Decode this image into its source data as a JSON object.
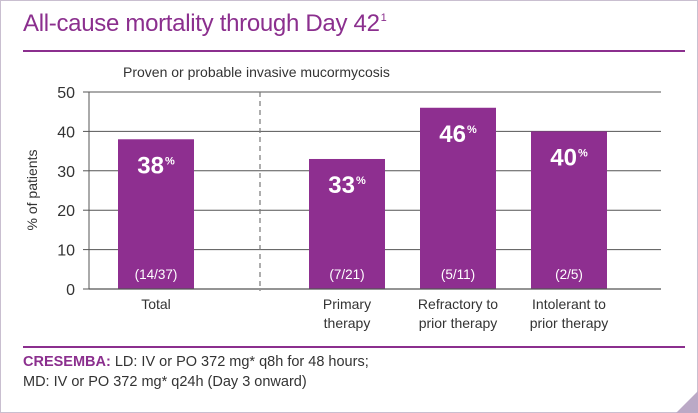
{
  "header": {
    "title": "All-cause mortality through Day 42",
    "title_superscript": "1"
  },
  "chart_data": {
    "type": "bar",
    "subtitle": "Proven or probable invasive mucormycosis",
    "ylabel": "% of patients",
    "ylim": [
      0,
      50
    ],
    "yticks": [
      0,
      10,
      20,
      30,
      40,
      50
    ],
    "grid": true,
    "bar_color": "#8e2f90",
    "categories": [
      [
        "Total"
      ],
      [
        "Primary",
        "therapy"
      ],
      [
        "Refractory to",
        "prior therapy"
      ],
      [
        "Intolerant to",
        "prior therapy"
      ]
    ],
    "values": [
      38,
      33,
      46,
      40
    ],
    "value_labels": [
      "38",
      "33",
      "46",
      "40"
    ],
    "value_unit": "%",
    "count_labels": [
      "(14/37)",
      "(7/21)",
      "(5/11)",
      "(2/5)"
    ]
  },
  "footer": {
    "brand": "CRESEMBA:",
    "line1": " LD: IV or PO 372 mg* q8h for 48 hours;",
    "line2": "MD: IV or PO 372 mg* q24h (Day 3 onward)"
  },
  "colors": {
    "accent": "#8b2f8e",
    "axis": "#555555",
    "text": "#333333"
  }
}
